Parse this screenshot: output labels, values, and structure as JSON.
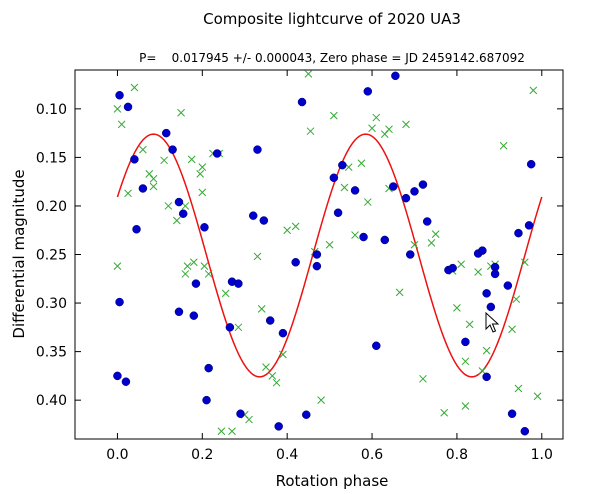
{
  "chart_data": {
    "type": "scatter",
    "title": "Composite lightcurve of 2020 UA3",
    "subtitle": "P=    0.017945 +/- 0.000043, Zero phase = JD 2459142.687092",
    "xlabel": "Rotation phase",
    "ylabel": "Differential magnitude",
    "xlim": [
      -0.1,
      1.05
    ],
    "ylim": [
      0.06,
      0.44
    ],
    "y_inverted": true,
    "grid": false,
    "x_ticks": [
      "0.0",
      "0.2",
      "0.4",
      "0.6",
      "0.8",
      "1.0"
    ],
    "x_tick_values": [
      0.0,
      0.2,
      0.4,
      0.6,
      0.8,
      1.0
    ],
    "y_ticks": [
      "0.10",
      "0.15",
      "0.20",
      "0.25",
      "0.30",
      "0.35",
      "0.40"
    ],
    "y_tick_values": [
      0.1,
      0.15,
      0.2,
      0.25,
      0.3,
      0.35,
      0.4
    ],
    "series": [
      {
        "marker": "circle",
        "color": "#0000cc",
        "points": [
          [
            0.005,
            0.086
          ],
          [
            0.025,
            0.098
          ],
          [
            0.04,
            0.152
          ],
          [
            0.045,
            0.224
          ],
          [
            0.06,
            0.182
          ],
          [
            0.005,
            0.299
          ],
          [
            0.0,
            0.375
          ],
          [
            0.02,
            0.381
          ],
          [
            0.115,
            0.125
          ],
          [
            0.13,
            0.142
          ],
          [
            0.145,
            0.196
          ],
          [
            0.155,
            0.208
          ],
          [
            0.145,
            0.309
          ],
          [
            0.18,
            0.313
          ],
          [
            0.185,
            0.28
          ],
          [
            0.205,
            0.222
          ],
          [
            0.215,
            0.367
          ],
          [
            0.21,
            0.4
          ],
          [
            0.235,
            0.146
          ],
          [
            0.265,
            0.325
          ],
          [
            0.27,
            0.278
          ],
          [
            0.285,
            0.28
          ],
          [
            0.29,
            0.414
          ],
          [
            0.32,
            0.21
          ],
          [
            0.33,
            0.142
          ],
          [
            0.345,
            0.215
          ],
          [
            0.36,
            0.318
          ],
          [
            0.38,
            0.427
          ],
          [
            0.39,
            0.331
          ],
          [
            0.42,
            0.258
          ],
          [
            0.435,
            0.093
          ],
          [
            0.445,
            0.415
          ],
          [
            0.47,
            0.262
          ],
          [
            0.47,
            0.25
          ],
          [
            0.51,
            0.171
          ],
          [
            0.53,
            0.158
          ],
          [
            0.52,
            0.207
          ],
          [
            0.56,
            0.184
          ],
          [
            0.58,
            0.232
          ],
          [
            0.59,
            0.082
          ],
          [
            0.61,
            0.344
          ],
          [
            0.63,
            0.235
          ],
          [
            0.65,
            0.18
          ],
          [
            0.655,
            0.066
          ],
          [
            0.68,
            0.192
          ],
          [
            0.69,
            0.25
          ],
          [
            0.7,
            0.185
          ],
          [
            0.72,
            0.178
          ],
          [
            0.73,
            0.216
          ],
          [
            0.78,
            0.266
          ],
          [
            0.79,
            0.264
          ],
          [
            0.82,
            0.34
          ],
          [
            0.85,
            0.249
          ],
          [
            0.86,
            0.246
          ],
          [
            0.87,
            0.29
          ],
          [
            0.87,
            0.376
          ],
          [
            0.88,
            0.304
          ],
          [
            0.89,
            0.263
          ],
          [
            0.92,
            0.282
          ],
          [
            0.93,
            0.414
          ],
          [
            0.945,
            0.228
          ],
          [
            0.96,
            0.432
          ],
          [
            0.97,
            0.22
          ],
          [
            0.975,
            0.157
          ],
          [
            0.89,
            0.27
          ]
        ]
      },
      {
        "marker": "x",
        "color": "#33aa33",
        "points": [
          [
            0.0,
            0.1
          ],
          [
            0.01,
            0.116
          ],
          [
            0.025,
            0.187
          ],
          [
            0.04,
            0.078
          ],
          [
            0.0,
            0.262
          ],
          [
            0.06,
            0.142
          ],
          [
            0.075,
            0.167
          ],
          [
            0.085,
            0.172
          ],
          [
            0.085,
            0.18
          ],
          [
            0.11,
            0.153
          ],
          [
            0.12,
            0.2
          ],
          [
            0.14,
            0.215
          ],
          [
            0.15,
            0.104
          ],
          [
            0.16,
            0.2
          ],
          [
            0.165,
            0.262
          ],
          [
            0.175,
            0.152
          ],
          [
            0.18,
            0.258
          ],
          [
            0.195,
            0.167
          ],
          [
            0.2,
            0.16
          ],
          [
            0.205,
            0.262
          ],
          [
            0.215,
            0.27
          ],
          [
            0.225,
            0.146
          ],
          [
            0.24,
            0.146
          ],
          [
            0.245,
            0.432
          ],
          [
            0.255,
            0.29
          ],
          [
            0.27,
            0.432
          ],
          [
            0.285,
            0.325
          ],
          [
            0.3,
            0.415
          ],
          [
            0.31,
            0.42
          ],
          [
            0.33,
            0.252
          ],
          [
            0.34,
            0.306
          ],
          [
            0.35,
            0.366
          ],
          [
            0.365,
            0.375
          ],
          [
            0.375,
            0.382
          ],
          [
            0.39,
            0.353
          ],
          [
            0.4,
            0.225
          ],
          [
            0.42,
            0.221
          ],
          [
            0.45,
            0.064
          ],
          [
            0.455,
            0.123
          ],
          [
            0.465,
            0.247
          ],
          [
            0.48,
            0.4
          ],
          [
            0.5,
            0.24
          ],
          [
            0.51,
            0.107
          ],
          [
            0.535,
            0.181
          ],
          [
            0.545,
            0.16
          ],
          [
            0.56,
            0.23
          ],
          [
            0.575,
            0.156
          ],
          [
            0.59,
            0.196
          ],
          [
            0.6,
            0.12
          ],
          [
            0.61,
            0.109
          ],
          [
            0.63,
            0.126
          ],
          [
            0.64,
            0.121
          ],
          [
            0.665,
            0.289
          ],
          [
            0.68,
            0.116
          ],
          [
            0.7,
            0.24
          ],
          [
            0.72,
            0.378
          ],
          [
            0.74,
            0.238
          ],
          [
            0.75,
            0.229
          ],
          [
            0.77,
            0.413
          ],
          [
            0.79,
            0.267
          ],
          [
            0.8,
            0.305
          ],
          [
            0.81,
            0.26
          ],
          [
            0.82,
            0.406
          ],
          [
            0.83,
            0.322
          ],
          [
            0.85,
            0.268
          ],
          [
            0.86,
            0.37
          ],
          [
            0.87,
            0.349
          ],
          [
            0.88,
            0.262
          ],
          [
            0.89,
            0.26
          ],
          [
            0.91,
            0.138
          ],
          [
            0.93,
            0.327
          ],
          [
            0.94,
            0.296
          ],
          [
            0.945,
            0.388
          ],
          [
            0.96,
            0.258
          ],
          [
            0.98,
            0.081
          ],
          [
            0.99,
            0.396
          ],
          [
            0.82,
            0.36
          ],
          [
            0.2,
            0.186
          ],
          [
            0.16,
            0.27
          ],
          [
            0.64,
            0.182
          ]
        ]
      },
      {
        "marker": "line",
        "color": "#ee1111",
        "fit": {
          "mean": 0.251,
          "amplitude": 0.125,
          "phase_at_peak_brightness": 0.085,
          "cycles_per_phase": 2
        }
      }
    ]
  }
}
